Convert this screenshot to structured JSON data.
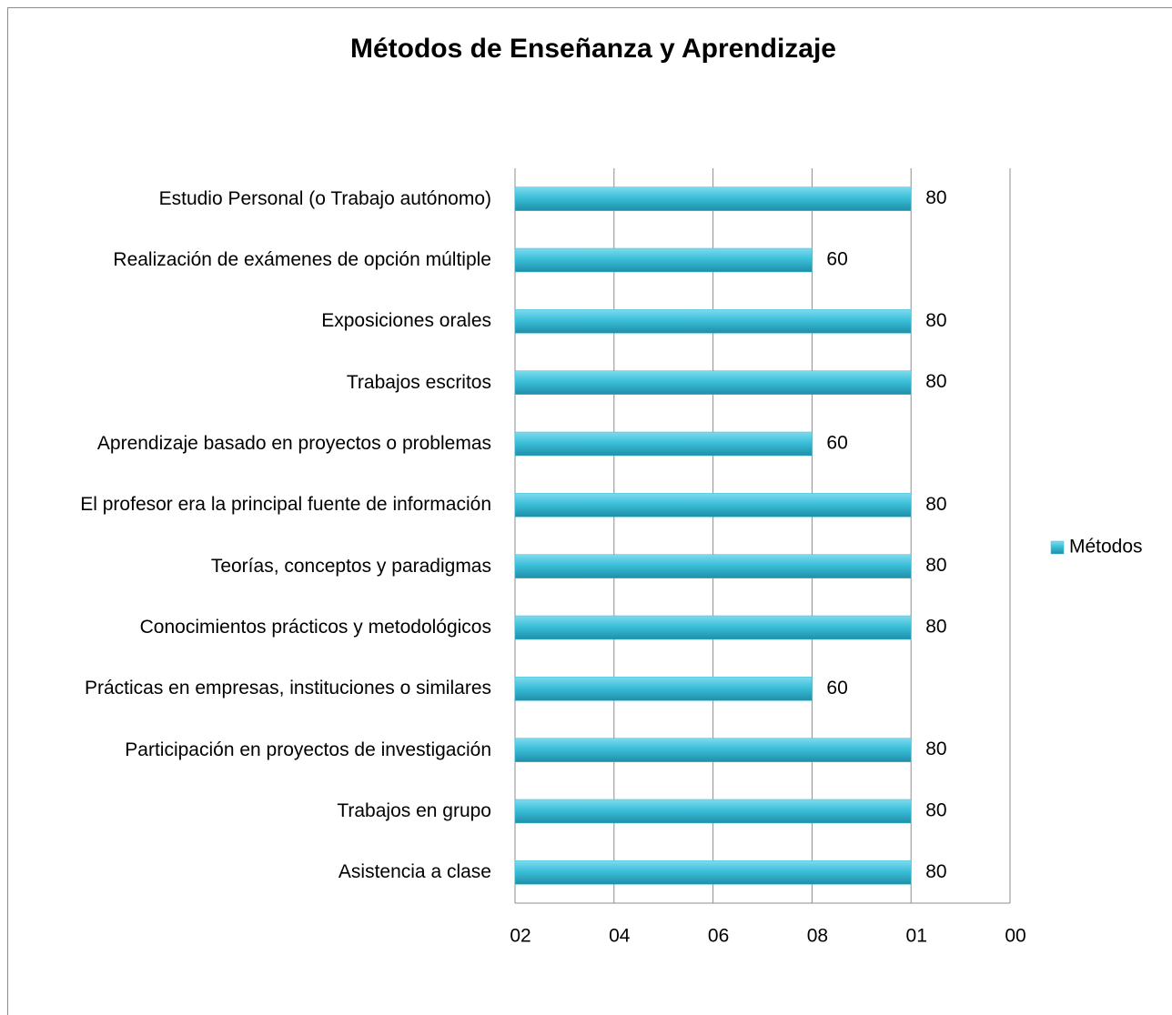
{
  "chart_data": {
    "type": "bar",
    "orientation": "horizontal",
    "title": "Métodos de Enseñanza y Aprendizaje",
    "categories": [
      "Estudio Personal (o Trabajo autónomo)",
      "Realización de exámenes de opción múltiple",
      "Exposiciones orales",
      "Trabajos escritos",
      "Aprendizaje basado en proyectos o problemas",
      "El profesor era la principal fuente de información",
      "Teorías, conceptos y paradigmas",
      "Conocimientos prácticos y metodológicos",
      "Prácticas en empresas, instituciones o similares",
      "Participación en proyectos de investigación",
      "Trabajos en grupo",
      "Asistencia a clase"
    ],
    "series": [
      {
        "name": "Métodos",
        "color": "#3bbfd9",
        "values": [
          80,
          60,
          80,
          80,
          60,
          80,
          80,
          80,
          60,
          80,
          80,
          80
        ]
      }
    ],
    "xlim": [
      0,
      100
    ],
    "xticks": [
      {
        "value": 0,
        "label": "02"
      },
      {
        "value": 20,
        "label": "04"
      },
      {
        "value": 40,
        "label": "06"
      },
      {
        "value": 60,
        "label": "08"
      },
      {
        "value": 80,
        "label": "01"
      },
      {
        "value": 100,
        "label": "00"
      }
    ],
    "grid": true,
    "legend": "right"
  }
}
